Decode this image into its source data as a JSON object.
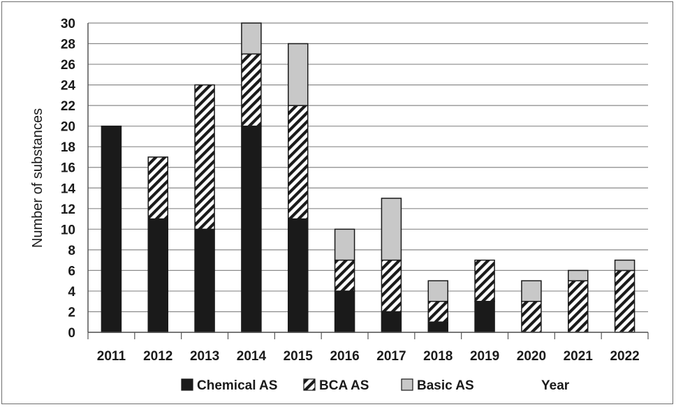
{
  "chart_data": {
    "type": "bar",
    "stacked": true,
    "categories": [
      "2011",
      "2012",
      "2013",
      "2014",
      "2015",
      "2016",
      "2017",
      "2018",
      "2019",
      "2020",
      "2021",
      "2022"
    ],
    "series": [
      {
        "name": "Chemical AS",
        "values": [
          20,
          11,
          10,
          20,
          11,
          4,
          2,
          1,
          3,
          0,
          0,
          0
        ],
        "fill": "solid",
        "color": "#1a1a1a"
      },
      {
        "name": "BCA AS",
        "values": [
          0,
          6,
          14,
          7,
          11,
          3,
          5,
          2,
          4,
          3,
          5,
          6
        ],
        "fill": "hatch",
        "color": "#1a1a1a"
      },
      {
        "name": "Basic AS",
        "values": [
          0,
          0,
          0,
          3,
          6,
          3,
          6,
          2,
          0,
          2,
          1,
          1
        ],
        "fill": "solid",
        "color": "#c8c8c8"
      }
    ],
    "title": "",
    "xlabel": "Year",
    "ylabel": "Number of substances",
    "ylim": [
      0,
      30
    ],
    "yticks": [
      "0",
      "2",
      "4",
      "6",
      "8",
      "10",
      "12",
      "14",
      "16",
      "18",
      "20",
      "22",
      "24",
      "26",
      "28",
      "30"
    ],
    "grid": true,
    "legend_position": "bottom"
  }
}
